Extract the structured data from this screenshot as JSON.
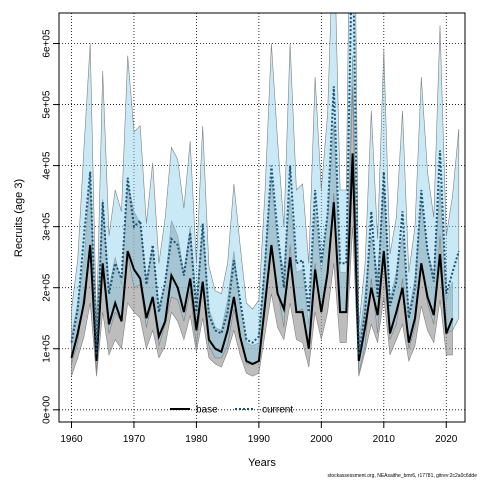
{
  "chart_data": {
    "type": "line",
    "xlabel": "Years",
    "ylabel": "Recruits (age 3)",
    "xlim": [
      1958,
      2023
    ],
    "ylim": [
      -20000,
      650000
    ],
    "xticks": [
      1960,
      1970,
      1980,
      1990,
      2000,
      2010,
      2020
    ],
    "xtick_labels": [
      "1960",
      "1970",
      "1980",
      "1990",
      "2000",
      "2010",
      "2020"
    ],
    "yticks": [
      0,
      100000,
      200000,
      300000,
      400000,
      500000,
      600000
    ],
    "ytick_labels": [
      "0e+00",
      "1e+05",
      "2e+05",
      "3e+05",
      "4e+05",
      "5e+05",
      "6e+05"
    ],
    "grid": true,
    "legend": {
      "placement": "bottom-center",
      "entries": [
        "base",
        "current"
      ]
    },
    "footnote": "stockassessment.org, NEAsaithe_bmr6, r17781, gitrev:2c2a0c6dde",
    "x": [
      1960,
      1961,
      1962,
      1963,
      1964,
      1965,
      1966,
      1967,
      1968,
      1969,
      1970,
      1971,
      1972,
      1973,
      1974,
      1975,
      1976,
      1977,
      1978,
      1979,
      1980,
      1981,
      1982,
      1983,
      1984,
      1985,
      1986,
      1987,
      1988,
      1989,
      1990,
      1991,
      1992,
      1993,
      1994,
      1995,
      1996,
      1997,
      1998,
      1999,
      2000,
      2001,
      2002,
      2003,
      2004,
      2005,
      2006,
      2007,
      2008,
      2009,
      2010,
      2011,
      2012,
      2013,
      2014,
      2015,
      2016,
      2017,
      2018,
      2019,
      2020,
      2021,
      2022
    ],
    "series": [
      {
        "name": "base",
        "color": "#000000",
        "band_color": "#9a9a9a",
        "values": [
          85000,
          125000,
          175000,
          270000,
          80000,
          240000,
          140000,
          175000,
          145000,
          260000,
          230000,
          215000,
          150000,
          185000,
          120000,
          145000,
          220000,
          200000,
          160000,
          215000,
          130000,
          210000,
          115000,
          100000,
          95000,
          130000,
          185000,
          120000,
          80000,
          75000,
          80000,
          175000,
          270000,
          190000,
          165000,
          250000,
          160000,
          160000,
          100000,
          230000,
          160000,
          225000,
          340000,
          160000,
          160000,
          420000,
          80000,
          135000,
          200000,
          155000,
          260000,
          125000,
          160000,
          200000,
          110000,
          150000,
          240000,
          185000,
          155000,
          255000,
          125000,
          150000,
          null
        ],
        "lower": [
          55000,
          85000,
          120000,
          175000,
          55000,
          160000,
          90000,
          115000,
          100000,
          175000,
          160000,
          150000,
          100000,
          130000,
          85000,
          105000,
          160000,
          145000,
          115000,
          155000,
          95000,
          150000,
          85000,
          75000,
          70000,
          95000,
          130000,
          90000,
          60000,
          55000,
          60000,
          125000,
          190000,
          135000,
          115000,
          175000,
          115000,
          110000,
          70000,
          160000,
          115000,
          160000,
          240000,
          110000,
          110000,
          300000,
          55000,
          95000,
          140000,
          110000,
          185000,
          90000,
          115000,
          140000,
          80000,
          105000,
          170000,
          130000,
          110000,
          180000,
          90000,
          90000,
          null
        ],
        "upper": [
          120000,
          175000,
          245000,
          380000,
          115000,
          345000,
          200000,
          250000,
          205000,
          370000,
          325000,
          305000,
          215000,
          265000,
          170000,
          205000,
          310000,
          285000,
          225000,
          300000,
          180000,
          300000,
          165000,
          135000,
          130000,
          180000,
          260000,
          170000,
          110000,
          105000,
          110000,
          245000,
          380000,
          270000,
          230000,
          350000,
          225000,
          230000,
          140000,
          325000,
          225000,
          315000,
          470000,
          225000,
          225000,
          580000,
          110000,
          190000,
          285000,
          220000,
          370000,
          180000,
          225000,
          285000,
          160000,
          215000,
          340000,
          260000,
          220000,
          365000,
          180000,
          210000,
          null
        ]
      },
      {
        "name": "current",
        "color": "#1a5276",
        "band_color": "#87ceeb",
        "values": [
          110000,
          165000,
          285000,
          390000,
          90000,
          340000,
          190000,
          240000,
          215000,
          380000,
          300000,
          310000,
          205000,
          270000,
          160000,
          210000,
          280000,
          270000,
          220000,
          290000,
          160000,
          305000,
          155000,
          130000,
          125000,
          160000,
          245000,
          180000,
          115000,
          110000,
          120000,
          240000,
          400000,
          290000,
          200000,
          400000,
          240000,
          245000,
          160000,
          360000,
          240000,
          320000,
          530000,
          240000,
          240000,
          800000,
          90000,
          160000,
          325000,
          185000,
          390000,
          170000,
          210000,
          325000,
          150000,
          200000,
          360000,
          260000,
          210000,
          425000,
          190000,
          225000,
          260000
        ],
        "lower": [
          75000,
          110000,
          190000,
          260000,
          60000,
          225000,
          125000,
          160000,
          145000,
          255000,
          200000,
          205000,
          135000,
          180000,
          105000,
          140000,
          185000,
          180000,
          145000,
          195000,
          105000,
          205000,
          105000,
          85000,
          85000,
          105000,
          165000,
          120000,
          75000,
          75000,
          80000,
          160000,
          270000,
          195000,
          135000,
          270000,
          160000,
          165000,
          105000,
          240000,
          160000,
          215000,
          355000,
          160000,
          160000,
          530000,
          60000,
          105000,
          215000,
          125000,
          260000,
          115000,
          140000,
          215000,
          100000,
          135000,
          240000,
          175000,
          140000,
          285000,
          125000,
          130000,
          150000
        ],
        "upper": [
          165000,
          245000,
          430000,
          600000,
          135000,
          555000,
          285000,
          360000,
          325000,
          580000,
          455000,
          465000,
          305000,
          405000,
          240000,
          315000,
          430000,
          410000,
          330000,
          440000,
          240000,
          465000,
          235000,
          195000,
          190000,
          240000,
          370000,
          270000,
          175000,
          165000,
          180000,
          360000,
          600000,
          440000,
          300000,
          600000,
          360000,
          370000,
          240000,
          545000,
          360000,
          485000,
          800000,
          360000,
          360000,
          1200000,
          135000,
          240000,
          490000,
          280000,
          590000,
          255000,
          315000,
          490000,
          225000,
          300000,
          545000,
          390000,
          315000,
          630000,
          285000,
          350000,
          460000
        ]
      }
    ]
  }
}
